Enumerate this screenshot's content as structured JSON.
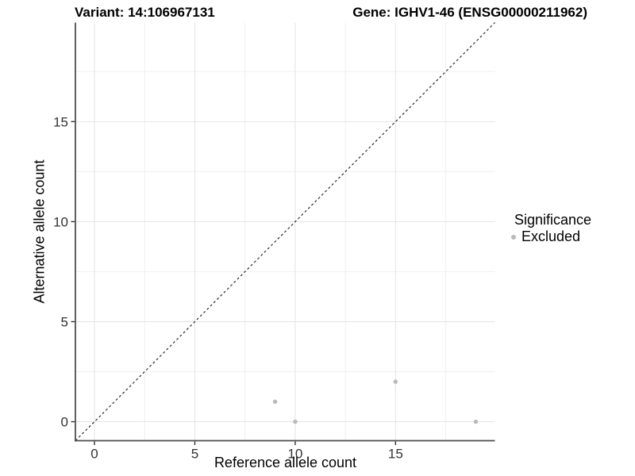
{
  "header": {
    "variant_title": "Variant: 14:106967131",
    "gene_title": "Gene: IGHV1-46 (ENSG00000211962)"
  },
  "legend": {
    "title": "Significance",
    "items": [
      {
        "label": "Excluded",
        "color": "#b9b9b9"
      }
    ]
  },
  "chart_data": {
    "type": "scatter",
    "xlabel": "Reference allele count",
    "ylabel": "Alternative allele count",
    "xlim": [
      -0.95,
      19.95
    ],
    "ylim": [
      -0.95,
      19.95
    ],
    "x_ticks": [
      0,
      5,
      10,
      15
    ],
    "y_ticks": [
      0,
      5,
      10,
      15
    ],
    "minor_step": 2.5,
    "grid": true,
    "legend_position": "right",
    "series": [
      {
        "name": "Excluded",
        "color": "#b9b9b9",
        "point_radius": 2.7,
        "points": [
          [
            9,
            1
          ],
          [
            10,
            0
          ],
          [
            15,
            2
          ],
          [
            19,
            0
          ]
        ]
      }
    ],
    "reference_line": {
      "type": "identity",
      "style": "dashed",
      "color": "#1a1a1a"
    },
    "colors": {
      "grid_major": "#e4e4e4",
      "grid_minor": "#f0f0f0",
      "axis_line": "#4d4d4d",
      "tick_mark": "#333333",
      "tick_label": "#333333"
    }
  }
}
